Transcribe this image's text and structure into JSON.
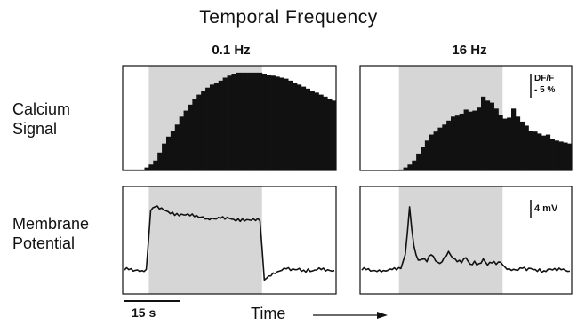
{
  "header": {
    "title": "Temporal Frequency"
  },
  "columns": [
    {
      "label": "0.1 Hz"
    },
    {
      "label": "16 Hz"
    }
  ],
  "rows": [
    {
      "line1": "Calcium",
      "line2": "Signal"
    },
    {
      "line1": "Membrane",
      "line2": "Potential"
    }
  ],
  "scale_bars": {
    "calcium_line1": "DF/F",
    "calcium_line2": "- 5 %",
    "membrane": "4 mV",
    "time": "15 s"
  },
  "time_axis": {
    "label": "Time"
  },
  "colors": {
    "stimulus_shading": "#d6d6d6",
    "trace": "#111111"
  },
  "chart_data": [
    {
      "type": "bar",
      "title": "0.1 Hz",
      "ylabel": "Calcium Signal",
      "x": [
        0,
        1,
        2,
        3,
        4,
        5,
        6,
        7,
        8,
        9,
        10,
        11,
        12,
        13,
        14,
        15,
        16,
        17,
        18,
        19,
        20,
        21,
        22,
        23,
        24,
        25,
        26,
        27,
        28,
        29,
        30,
        31,
        32,
        33,
        34,
        35,
        36,
        37,
        38,
        39,
        40,
        41,
        42,
        43,
        44,
        45,
        46,
        47,
        48
      ],
      "values": [
        0.1,
        0.1,
        0.1,
        0.1,
        0.1,
        0.3,
        0.6,
        1.0,
        1.8,
        2.7,
        3.4,
        4.0,
        4.6,
        5.4,
        6.0,
        6.6,
        7.2,
        7.6,
        8.0,
        8.3,
        8.6,
        8.8,
        9.0,
        9.3,
        9.5,
        9.7,
        9.8,
        9.8,
        9.8,
        9.8,
        9.8,
        9.8,
        9.7,
        9.6,
        9.5,
        9.4,
        9.3,
        9.2,
        9.0,
        8.8,
        8.6,
        8.4,
        8.2,
        8.0,
        7.8,
        7.6,
        7.4,
        7.2,
        7.0
      ],
      "stimulus": [
        6,
        32
      ],
      "ylim": [
        0,
        10.5
      ]
    },
    {
      "type": "bar",
      "title": "16 Hz",
      "ylabel": "Calcium Signal",
      "x": [
        0,
        1,
        2,
        3,
        4,
        5,
        6,
        7,
        8,
        9,
        10,
        11,
        12,
        13,
        14,
        15,
        16,
        17,
        18,
        19,
        20,
        21,
        22,
        23,
        24,
        25,
        26,
        27,
        28,
        29,
        30,
        31,
        32,
        33,
        34,
        35,
        36,
        37,
        38,
        39,
        40,
        41,
        42,
        43,
        44,
        45,
        46,
        47,
        48
      ],
      "values": [
        0,
        0,
        0,
        0,
        0,
        0,
        0,
        0,
        0,
        0.1,
        0.3,
        0.6,
        1.0,
        1.7,
        2.4,
        3.0,
        3.6,
        3.9,
        4.3,
        4.6,
        5.0,
        5.4,
        5.5,
        5.7,
        6.1,
        5.9,
        6.0,
        6.3,
        7.4,
        7.0,
        6.8,
        6.2,
        5.6,
        5.2,
        5.3,
        6.2,
        5.4,
        4.9,
        4.5,
        4.0,
        3.9,
        3.7,
        3.5,
        3.6,
        3.2,
        3.0,
        2.9,
        2.8,
        2.7
      ],
      "stimulus": [
        9,
        33
      ],
      "ylim": [
        0,
        10.5
      ]
    },
    {
      "type": "line",
      "title": "0.1 Hz",
      "ylabel": "Membrane Potential",
      "x": [
        0,
        1,
        2,
        3,
        4,
        5,
        6,
        7,
        8,
        9,
        10,
        11,
        12,
        13,
        14,
        15,
        16,
        17,
        18,
        19,
        20,
        21,
        22,
        23,
        24,
        25,
        26,
        27,
        28,
        29,
        30,
        31,
        32,
        33,
        34,
        35,
        36,
        37,
        38,
        39,
        40,
        41,
        42,
        43,
        44,
        45,
        46,
        47,
        48
      ],
      "values": [
        0.0,
        0.1,
        -0.1,
        0.1,
        0.0,
        0.2,
        10.0,
        10.6,
        10.2,
        10.0,
        9.7,
        9.6,
        9.4,
        9.3,
        9.2,
        9.1,
        9.0,
        8.9,
        9.0,
        8.7,
        8.8,
        8.6,
        8.7,
        8.5,
        8.6,
        8.4,
        8.5,
        8.5,
        8.4,
        8.3,
        8.3,
        8.3,
        -1.6,
        -0.9,
        -0.4,
        -0.2,
        0.0,
        0.2,
        -0.1,
        0.0,
        0.2,
        -0.1,
        0.1,
        -0.2,
        0.0,
        0.1,
        -0.1,
        0.0,
        0.0
      ],
      "stimulus": [
        6,
        32
      ],
      "ylim": [
        -4,
        14
      ]
    },
    {
      "type": "line",
      "title": "16 Hz",
      "ylabel": "Membrane Potential",
      "x": [
        0,
        1,
        2,
        3,
        4,
        5,
        6,
        7,
        8,
        9,
        10,
        11,
        12,
        13,
        14,
        15,
        16,
        17,
        18,
        19,
        20,
        21,
        22,
        23,
        24,
        25,
        26,
        27,
        28,
        29,
        30,
        31,
        32,
        33,
        34,
        35,
        36,
        37,
        38,
        39,
        40,
        41,
        42,
        43,
        44,
        45,
        46,
        47,
        48
      ],
      "values": [
        0.0,
        0.1,
        -0.1,
        0.0,
        0.1,
        0.0,
        0.0,
        0.1,
        0.0,
        0.2,
        2.5,
        10.5,
        4.0,
        1.6,
        1.8,
        1.4,
        2.6,
        1.6,
        1.2,
        2.2,
        3.2,
        2.0,
        1.4,
        1.2,
        2.0,
        0.9,
        1.4,
        1.0,
        1.8,
        0.8,
        1.2,
        1.0,
        1.4,
        0.6,
        0.3,
        0.2,
        0.0,
        0.3,
        -0.1,
        0.2,
        0.0,
        0.1,
        -0.2,
        0.1,
        0.0,
        -0.1,
        0.1,
        0.0,
        -0.1
      ],
      "stimulus": [
        9,
        33
      ],
      "ylim": [
        -4,
        14
      ]
    }
  ]
}
